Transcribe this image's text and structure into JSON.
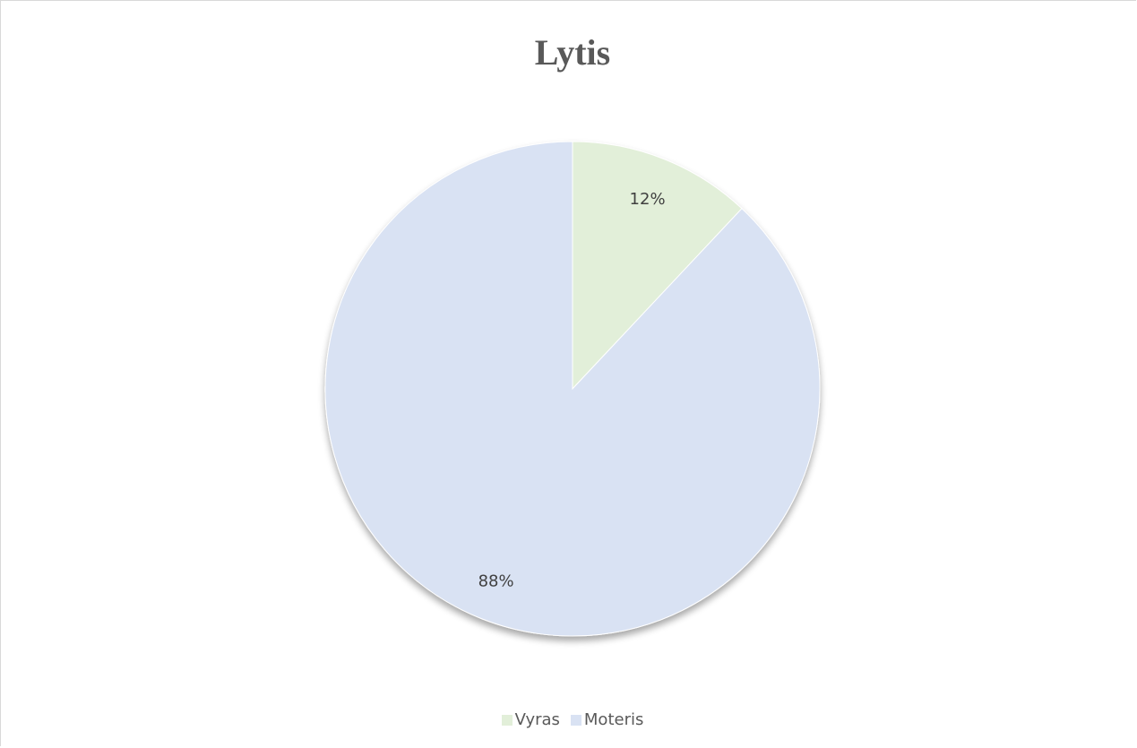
{
  "chart_data": {
    "type": "pie",
    "title": "Lytis",
    "categories": [
      "Vyras",
      "Moteris"
    ],
    "values": [
      12,
      88
    ],
    "data_labels": [
      "12%",
      "88%"
    ],
    "colors": [
      "#e2efd9",
      "#d9e2f3"
    ],
    "legend_position": "bottom"
  }
}
